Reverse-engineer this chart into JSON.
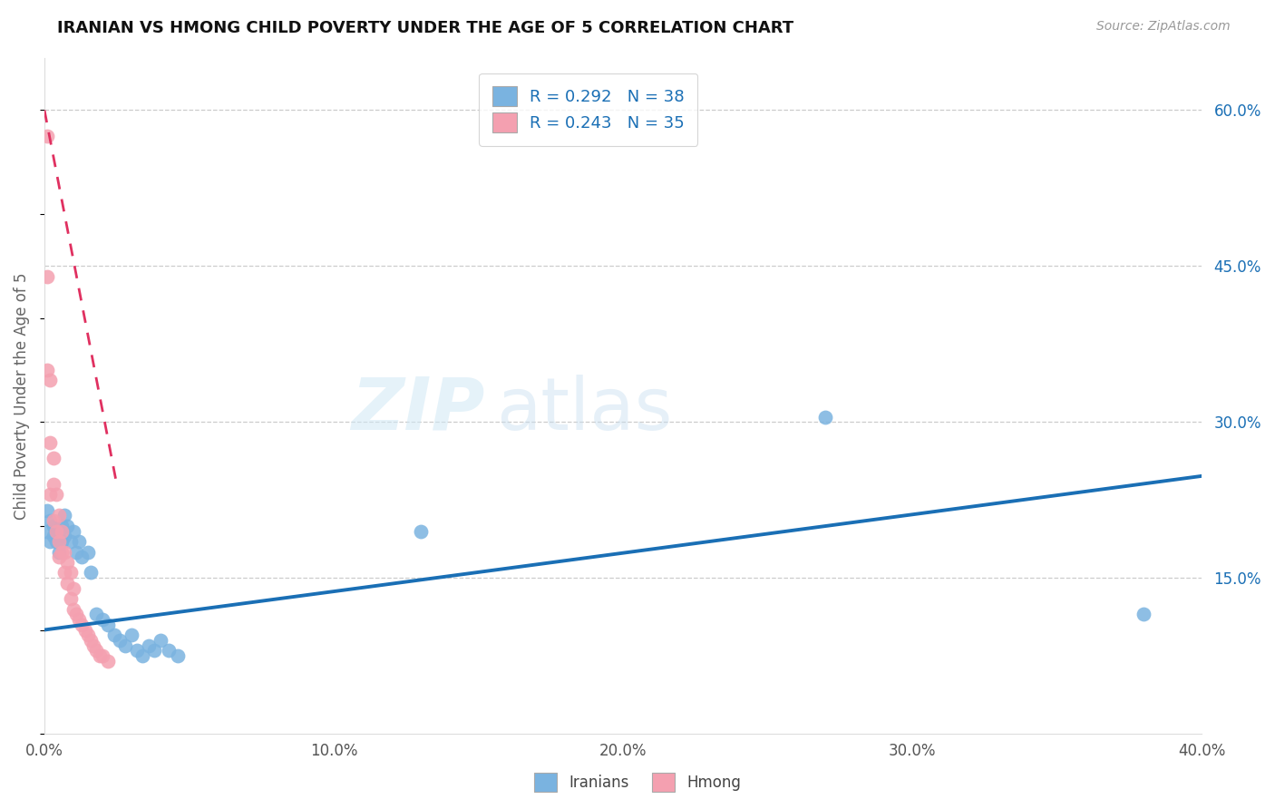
{
  "title": "IRANIAN VS HMONG CHILD POVERTY UNDER THE AGE OF 5 CORRELATION CHART",
  "source": "Source: ZipAtlas.com",
  "ylabel": "Child Poverty Under the Age of 5",
  "xmin": 0.0,
  "xmax": 0.4,
  "ymin": 0.0,
  "ymax": 0.65,
  "yticks_right": [
    0.15,
    0.3,
    0.45,
    0.6
  ],
  "ytick_labels_right": [
    "15.0%",
    "30.0%",
    "45.0%",
    "60.0%"
  ],
  "xticks": [
    0.0,
    0.1,
    0.2,
    0.3,
    0.4
  ],
  "xtick_labels": [
    "0.0%",
    "10.0%",
    "20.0%",
    "30.0%",
    "40.0%"
  ],
  "iranian_color": "#7ab3e0",
  "hmong_color": "#f4a0b0",
  "trend_iranian_color": "#1a6fb5",
  "trend_hmong_color": "#e03060",
  "R_iranian": 0.292,
  "N_iranian": 38,
  "R_hmong": 0.243,
  "N_hmong": 35,
  "iranians_x": [
    0.001,
    0.001,
    0.002,
    0.002,
    0.003,
    0.003,
    0.004,
    0.005,
    0.005,
    0.006,
    0.006,
    0.007,
    0.007,
    0.008,
    0.009,
    0.01,
    0.011,
    0.012,
    0.013,
    0.015,
    0.016,
    0.018,
    0.02,
    0.022,
    0.024,
    0.026,
    0.028,
    0.03,
    0.032,
    0.034,
    0.036,
    0.038,
    0.04,
    0.043,
    0.046,
    0.13,
    0.27,
    0.38
  ],
  "iranians_y": [
    0.215,
    0.195,
    0.205,
    0.185,
    0.2,
    0.19,
    0.185,
    0.195,
    0.175,
    0.2,
    0.185,
    0.21,
    0.19,
    0.2,
    0.185,
    0.195,
    0.175,
    0.185,
    0.17,
    0.175,
    0.155,
    0.115,
    0.11,
    0.105,
    0.095,
    0.09,
    0.085,
    0.095,
    0.08,
    0.075,
    0.085,
    0.08,
    0.09,
    0.08,
    0.075,
    0.195,
    0.305,
    0.115
  ],
  "hmong_x": [
    0.001,
    0.001,
    0.001,
    0.002,
    0.002,
    0.002,
    0.003,
    0.003,
    0.003,
    0.004,
    0.004,
    0.005,
    0.005,
    0.005,
    0.006,
    0.006,
    0.007,
    0.007,
    0.008,
    0.008,
    0.009,
    0.009,
    0.01,
    0.01,
    0.011,
    0.012,
    0.013,
    0.014,
    0.015,
    0.016,
    0.017,
    0.018,
    0.019,
    0.02,
    0.022
  ],
  "hmong_y": [
    0.575,
    0.44,
    0.35,
    0.34,
    0.28,
    0.23,
    0.265,
    0.24,
    0.205,
    0.23,
    0.195,
    0.21,
    0.185,
    0.17,
    0.195,
    0.175,
    0.175,
    0.155,
    0.165,
    0.145,
    0.155,
    0.13,
    0.14,
    0.12,
    0.115,
    0.11,
    0.105,
    0.1,
    0.095,
    0.09,
    0.085,
    0.08,
    0.075,
    0.075,
    0.07
  ],
  "trend_ir_x0": 0.0,
  "trend_ir_x1": 0.4,
  "trend_ir_y0": 0.1,
  "trend_ir_y1": 0.248,
  "trend_hm_x0": 0.0,
  "trend_hm_x1": 0.025,
  "trend_hm_y0": 0.6,
  "trend_hm_y1": 0.24
}
